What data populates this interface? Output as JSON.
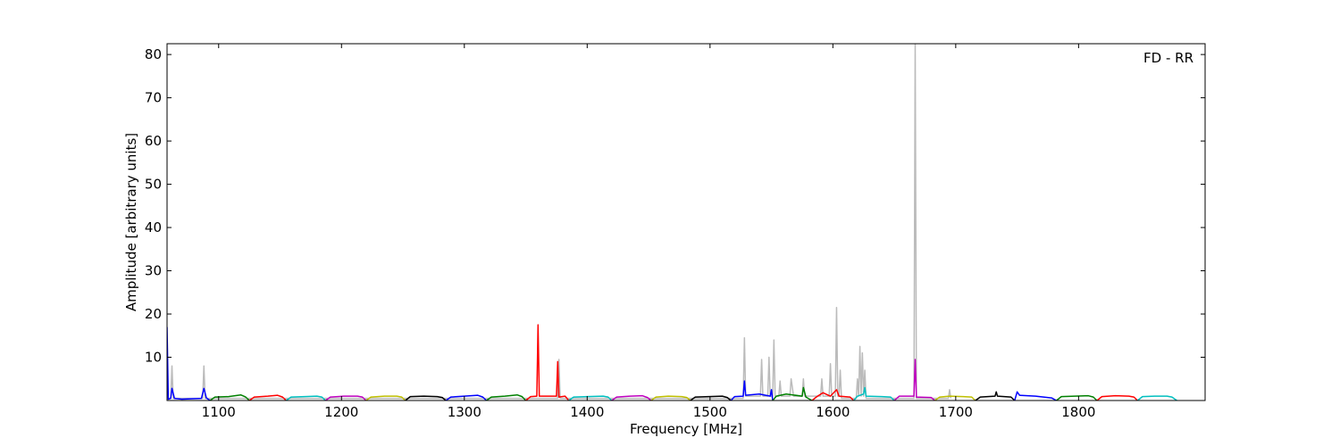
{
  "chart_data": {
    "type": "line",
    "annotation": "FD - RR",
    "x_label": "Frequency [MHz]",
    "y_label": "Amplitude [arbitrary units]",
    "xlim": [
      1058,
      1903
    ],
    "ylim": [
      0,
      82.5
    ],
    "xticks": [
      1100,
      1200,
      1300,
      1400,
      1500,
      1600,
      1700,
      1800
    ],
    "yticks": [
      10,
      20,
      30,
      40,
      50,
      60,
      70,
      80
    ],
    "series": [
      {
        "color": "#bbbbbb",
        "x": [
          1058,
          1061,
          1062,
          1063,
          1087,
          1088,
          1089,
          1376,
          1377,
          1378,
          1527,
          1528,
          1529,
          1541,
          1542,
          1543,
          1547,
          1548,
          1549,
          1551,
          1552,
          1553,
          1556,
          1557,
          1558,
          1565,
          1566,
          1568,
          1575,
          1576,
          1577,
          1590,
          1591,
          1592,
          1597,
          1598,
          1599,
          1602,
          1603,
          1604,
          1605,
          1606,
          1607,
          1619,
          1620,
          1621,
          1622,
          1623,
          1624,
          1625,
          1626,
          1627,
          1666,
          1667,
          1668,
          1694,
          1695,
          1696
        ],
        "values": [
          0.5,
          0.5,
          8,
          0.5,
          0.5,
          8,
          0.5,
          0.5,
          9.5,
          0.5,
          0.5,
          14.5,
          1,
          1,
          9.5,
          1,
          1,
          10,
          1,
          1,
          14,
          1,
          1,
          4.5,
          1,
          1,
          5,
          1,
          1,
          5,
          1,
          1,
          5,
          1,
          1,
          8.5,
          1,
          1,
          21.5,
          1,
          1,
          7,
          0.5,
          0.5,
          5,
          1,
          12.5,
          1,
          11,
          1,
          7,
          0.5,
          0.5,
          82.5,
          0.5,
          0.5,
          2.5,
          0.5
        ]
      },
      {
        "color": "#0000ff",
        "x": [
          1058,
          1059,
          1061,
          1062,
          1064,
          1070,
          1086,
          1088,
          1090,
          1093
        ],
        "values": [
          17,
          0.3,
          0.5,
          2.8,
          0.5,
          0.3,
          0.5,
          2.8,
          0.6,
          0
        ]
      },
      {
        "color": "#008000",
        "x": [
          1093,
          1097,
          1108,
          1118,
          1122,
          1125
        ],
        "values": [
          0,
          0.8,
          0.9,
          1.3,
          0.8,
          0
        ]
      },
      {
        "color": "#ff0000",
        "x": [
          1125,
          1129,
          1140,
          1148,
          1152,
          1155
        ],
        "values": [
          0,
          0.8,
          1,
          1.2,
          0.8,
          0
        ]
      },
      {
        "color": "#00bfbf",
        "x": [
          1155,
          1159,
          1170,
          1180,
          1184,
          1187
        ],
        "values": [
          0,
          0.8,
          0.9,
          1,
          0.8,
          0
        ]
      },
      {
        "color": "#bf00bf",
        "x": [
          1187,
          1191,
          1202,
          1213,
          1217,
          1220
        ],
        "values": [
          0,
          0.8,
          1,
          1,
          0.8,
          0
        ]
      },
      {
        "color": "#bfbf00",
        "x": [
          1220,
          1224,
          1235,
          1245,
          1249,
          1252
        ],
        "values": [
          0,
          0.8,
          1,
          1,
          0.8,
          0
        ]
      },
      {
        "color": "#000000",
        "x": [
          1252,
          1256,
          1267,
          1278,
          1282,
          1285
        ],
        "values": [
          0,
          0.9,
          1,
          0.9,
          0.7,
          0
        ]
      },
      {
        "color": "#0000ff",
        "x": [
          1285,
          1289,
          1300,
          1311,
          1315,
          1318
        ],
        "values": [
          0,
          0.8,
          1,
          1.2,
          0.8,
          0
        ]
      },
      {
        "color": "#008000",
        "x": [
          1318,
          1322,
          1333,
          1343,
          1347,
          1350
        ],
        "values": [
          0,
          0.8,
          1,
          1.3,
          0.9,
          0
        ]
      },
      {
        "color": "#ff0000",
        "x": [
          1350,
          1354,
          1359,
          1360,
          1361,
          1375,
          1376,
          1377,
          1382,
          1385
        ],
        "values": [
          0,
          0.9,
          1,
          17.5,
          1,
          1,
          9,
          0.8,
          1,
          0
        ]
      },
      {
        "color": "#00bfbf",
        "x": [
          1385,
          1389,
          1400,
          1413,
          1417,
          1420
        ],
        "values": [
          0,
          0.8,
          0.9,
          1,
          0.8,
          0
        ]
      },
      {
        "color": "#bf00bf",
        "x": [
          1420,
          1424,
          1435,
          1445,
          1449,
          1452
        ],
        "values": [
          0,
          0.8,
          1,
          1.1,
          0.7,
          0
        ]
      },
      {
        "color": "#bfbf00",
        "x": [
          1452,
          1456,
          1466,
          1477,
          1481,
          1484
        ],
        "values": [
          0,
          0.8,
          1,
          0.9,
          0.7,
          0
        ]
      },
      {
        "color": "#000000",
        "x": [
          1484,
          1488,
          1499,
          1510,
          1514,
          1517
        ],
        "values": [
          0,
          0.8,
          0.9,
          1,
          0.7,
          0
        ]
      },
      {
        "color": "#0000ff",
        "x": [
          1517,
          1520,
          1527,
          1528,
          1529,
          1540,
          1549,
          1550,
          1551
        ],
        "values": [
          0,
          0.9,
          1,
          4.5,
          1.2,
          1.5,
          1,
          2.5,
          0
        ]
      },
      {
        "color": "#008000",
        "x": [
          1551,
          1554,
          1562,
          1575,
          1576,
          1578,
          1583
        ],
        "values": [
          0,
          1,
          1.5,
          1,
          3,
          0.8,
          0
        ]
      },
      {
        "color": "#ff0000",
        "x": [
          1583,
          1587,
          1592,
          1598,
          1603,
          1605,
          1614,
          1617
        ],
        "values": [
          0,
          0.9,
          1.8,
          1,
          2.5,
          1,
          0.8,
          0
        ]
      },
      {
        "color": "#00bfbf",
        "x": [
          1617,
          1620,
          1625,
          1626,
          1627,
          1640,
          1647,
          1650
        ],
        "values": [
          0,
          1,
          1.5,
          3,
          1,
          0.9,
          0.8,
          0
        ]
      },
      {
        "color": "#bf00bf",
        "x": [
          1650,
          1654,
          1660,
          1666,
          1667,
          1668,
          1680,
          1683
        ],
        "values": [
          0,
          1,
          1,
          1,
          9.5,
          0.8,
          0.7,
          0
        ]
      },
      {
        "color": "#bfbf00",
        "x": [
          1683,
          1687,
          1695,
          1706,
          1713,
          1716
        ],
        "values": [
          0,
          0.8,
          1,
          0.9,
          0.8,
          0
        ]
      },
      {
        "color": "#000000",
        "x": [
          1716,
          1720,
          1732,
          1733,
          1734,
          1745,
          1748
        ],
        "values": [
          0,
          0.8,
          1,
          2,
          1,
          0.8,
          0
        ]
      },
      {
        "color": "#0000ff",
        "x": [
          1748,
          1750,
          1752,
          1765,
          1778,
          1782
        ],
        "values": [
          0,
          2,
          1.2,
          1,
          0.6,
          0
        ]
      },
      {
        "color": "#008000",
        "x": [
          1782,
          1786,
          1797,
          1808,
          1812,
          1815
        ],
        "values": [
          0,
          0.9,
          1,
          1.1,
          0.8,
          0
        ]
      },
      {
        "color": "#ff0000",
        "x": [
          1815,
          1819,
          1830,
          1841,
          1845,
          1848
        ],
        "values": [
          0,
          0.9,
          1.1,
          1,
          0.8,
          0
        ]
      },
      {
        "color": "#00bfbf",
        "x": [
          1848,
          1852,
          1862,
          1872,
          1876,
          1880
        ],
        "values": [
          0,
          0.9,
          1,
          1,
          0.8,
          0
        ]
      }
    ]
  }
}
